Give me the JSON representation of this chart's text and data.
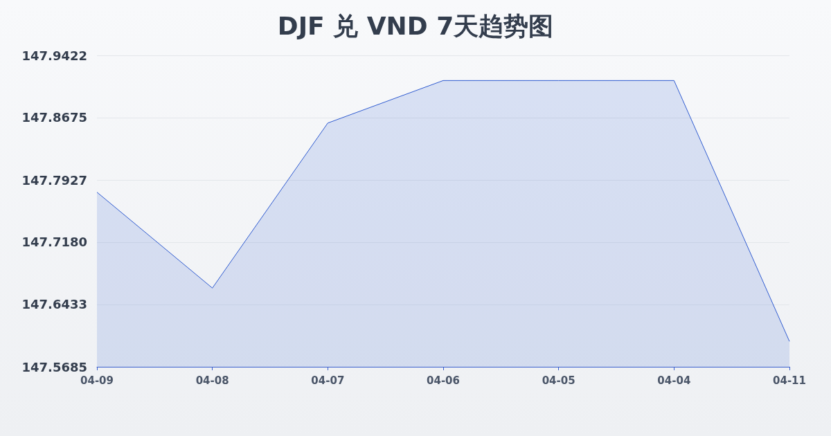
{
  "chart_data": {
    "type": "area",
    "title": "DJF 兑 VND 7天趋势图",
    "categories": [
      "04-09",
      "04-08",
      "04-07",
      "04-06",
      "04-05",
      "04-04",
      "04-11"
    ],
    "series": [
      {
        "color": "#2f5bd0",
        "values": [
          147.778,
          147.663,
          147.861,
          147.912,
          147.912,
          147.912,
          147.599
        ]
      }
    ],
    "ylim": [
      147.5685,
      147.9422
    ],
    "yticks": [
      147.5685,
      147.6433,
      {
        "value": 147.718,
        "label": "147.7180"
      },
      147.7927,
      147.8675,
      147.9422
    ],
    "grid": "y",
    "marker": "none",
    "line_style": "solid"
  }
}
